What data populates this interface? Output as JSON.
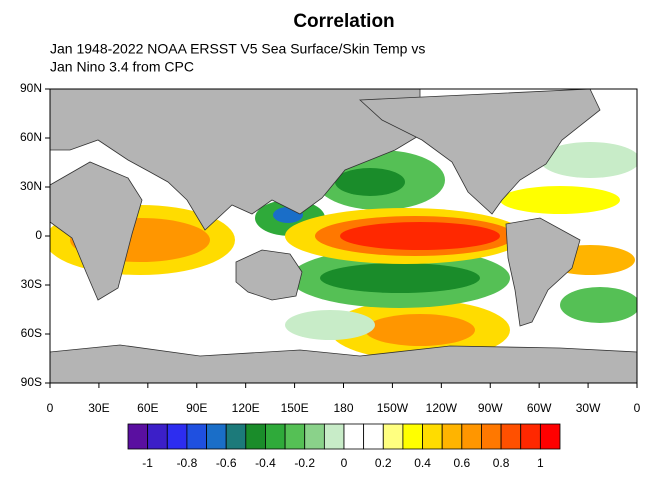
{
  "chart_data": {
    "type": "contour-map",
    "title": "Correlation",
    "subtitle": [
      "Jan 1948-2022 NOAA ERSST V5 Sea Surface/Skin Temp vs",
      "Jan Nino 3.4 from CPC"
    ],
    "xlim": [
      0,
      360
    ],
    "ylim": [
      -90,
      90
    ],
    "xticks": [
      0,
      {
        "value": 30,
        "label": "30E"
      },
      {
        "value": 60,
        "label": "60E"
      },
      {
        "value": 90,
        "label": "90E"
      },
      {
        "value": 120,
        "label": "120E"
      },
      {
        "value": 150,
        "label": "150E"
      },
      180,
      {
        "value": 210,
        "label": "150W"
      },
      {
        "value": 240,
        "label": "120W"
      },
      {
        "value": 270,
        "label": "90W"
      },
      {
        "value": 300,
        "label": "60W"
      },
      {
        "value": 330,
        "label": "30W"
      },
      {
        "value": 360,
        "label": "0"
      }
    ],
    "yticks": [
      {
        "value": 90,
        "label": "90N"
      },
      {
        "value": 60,
        "label": "60N"
      },
      {
        "value": 30,
        "label": "30N"
      },
      0,
      {
        "value": -30,
        "label": "30S"
      },
      {
        "value": -60,
        "label": "60S"
      },
      {
        "value": -90,
        "label": "90S"
      }
    ],
    "colorbar": {
      "lim": [
        -1.1,
        1.1
      ],
      "ticks": [
        -1,
        -0.8,
        -0.6,
        -0.4,
        -0.2,
        0,
        0.2,
        0.4,
        0.6,
        0.8,
        1
      ],
      "colors": [
        "#5a0fa0",
        "#3c1fc8",
        "#2d2df0",
        "#1f50e0",
        "#1a6ec8",
        "#1c7a7a",
        "#1a8c2a",
        "#2faa3a",
        "#55c055",
        "#8ad28a",
        "#c8ecc8",
        "#ffffff",
        "#ffffff",
        "#ffff80",
        "#ffff00",
        "#ffdc00",
        "#ffb400",
        "#ff9600",
        "#ff7800",
        "#ff5000",
        "#ff2800",
        "#ff0000"
      ]
    }
  }
}
